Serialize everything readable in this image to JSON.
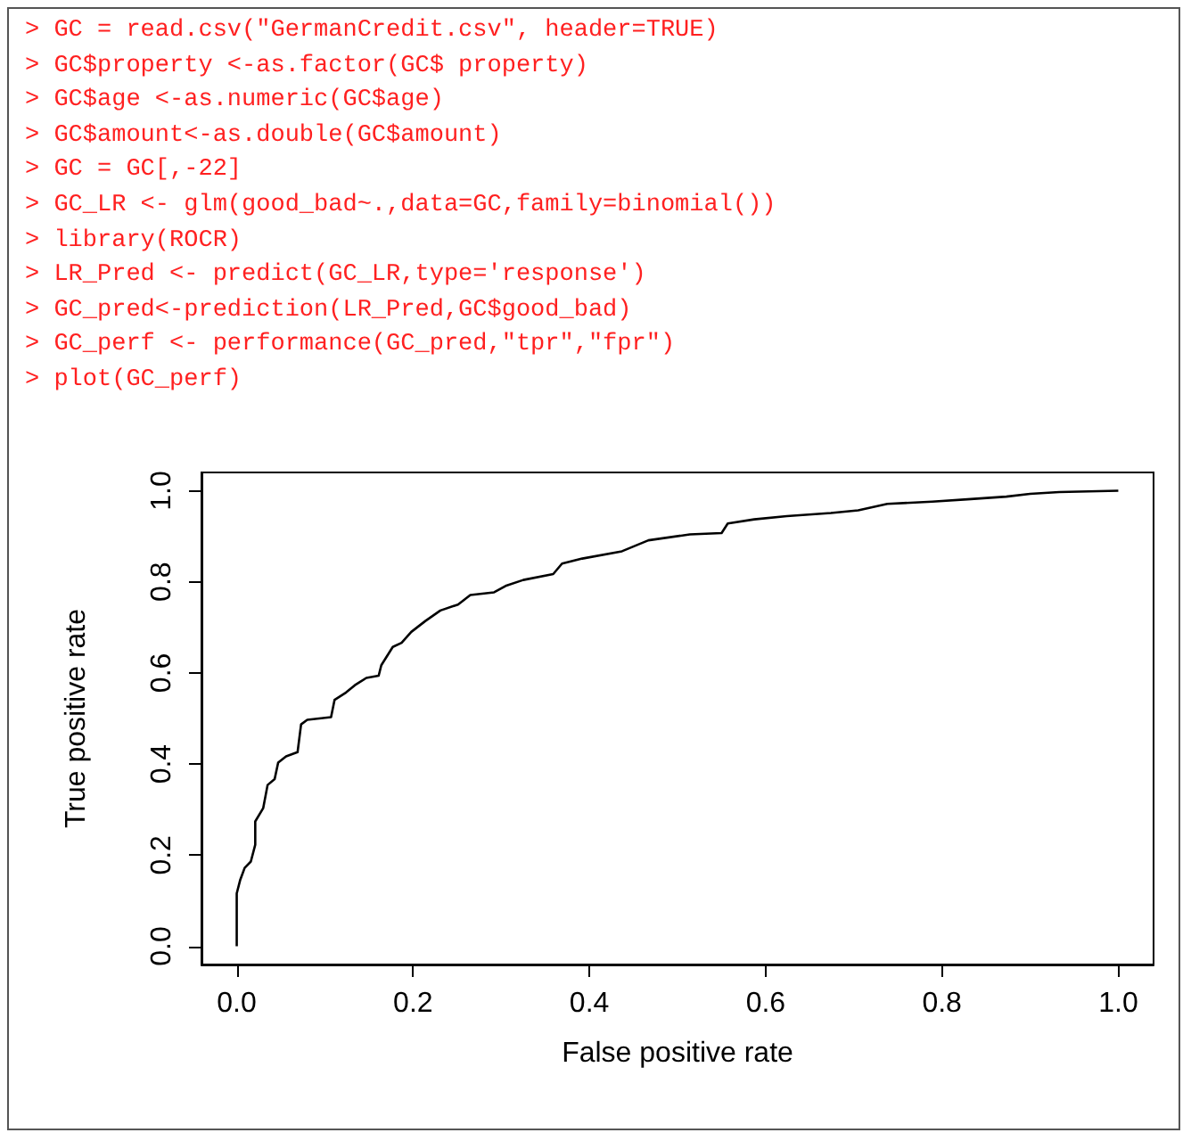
{
  "chart_data": {
    "type": "line",
    "xlabel": "False positive rate",
    "ylabel": "True positive rate",
    "annotations": [
      "> GC = read.csv(\"GermanCredit.csv\", header=TRUE)",
      "> GC$property <-as.factor(GC$ property)",
      "> GC$age <-as.numeric(GC$age)",
      "> GC$amount<-as.double(GC$amount)",
      "> GC = GC[,-22]",
      "> GC_LR <- glm(good_bad~.,data=GC,family=binomial())",
      "> library(ROCR)",
      "> LR_Pred <- predict(GC_LR,type='response')",
      "> GC_pred<-prediction(LR_Pred,GC$good_bad)",
      "> GC_perf <- performance(GC_pred,\"tpr\",\"fpr\")",
      "> plot(GC_perf)"
    ],
    "series": [
      {
        "color": "#000000",
        "x": [
          0,
          0,
          0.004,
          0.009,
          0.016,
          0.021,
          0.021,
          0.03,
          0.035,
          0.043,
          0.047,
          0.056,
          0.069,
          0.073,
          0.08,
          0.107,
          0.111,
          0.124,
          0.134,
          0.147,
          0.161,
          0.164,
          0.177,
          0.187,
          0.198,
          0.214,
          0.231,
          0.251,
          0.265,
          0.292,
          0.305,
          0.325,
          0.359,
          0.369,
          0.392,
          0.437,
          0.467,
          0.514,
          0.55,
          0.557,
          0.587,
          0.624,
          0.674,
          0.705,
          0.738,
          0.789,
          0.829,
          0.873,
          0.9,
          0.933,
          1.0
        ],
        "values": [
          0,
          0.116,
          0.146,
          0.172,
          0.186,
          0.223,
          0.274,
          0.303,
          0.354,
          0.367,
          0.403,
          0.417,
          0.426,
          0.487,
          0.497,
          0.503,
          0.541,
          0.557,
          0.573,
          0.589,
          0.594,
          0.617,
          0.657,
          0.666,
          0.69,
          0.714,
          0.737,
          0.75,
          0.771,
          0.777,
          0.791,
          0.804,
          0.817,
          0.84,
          0.851,
          0.867,
          0.891,
          0.904,
          0.907,
          0.928,
          0.937,
          0.944,
          0.951,
          0.957,
          0.971,
          0.976,
          0.981,
          0.987,
          0.993,
          0.997,
          1.0
        ]
      }
    ],
    "xlim": [
      -0.04,
      1.04
    ],
    "ylim": [
      -0.04,
      1.04
    ],
    "xticks": [
      {
        "value": 0,
        "label": "0.0"
      },
      {
        "value": 0.2,
        "label": "0.2"
      },
      {
        "value": 0.4,
        "label": "0.4"
      },
      {
        "value": 0.6,
        "label": "0.6"
      },
      {
        "value": 0.8,
        "label": "0.8"
      },
      {
        "value": 1,
        "label": "1.0"
      }
    ],
    "yticks": [
      {
        "value": 0,
        "label": "0.0"
      },
      {
        "value": 0.2,
        "label": "0.2"
      },
      {
        "value": 0.4,
        "label": "0.4"
      },
      {
        "value": 0.6,
        "label": "0.6"
      },
      {
        "value": 0.8,
        "label": "0.8"
      },
      {
        "value": 1,
        "label": "1.0"
      }
    ],
    "marker": "none",
    "line_style": "solid"
  }
}
